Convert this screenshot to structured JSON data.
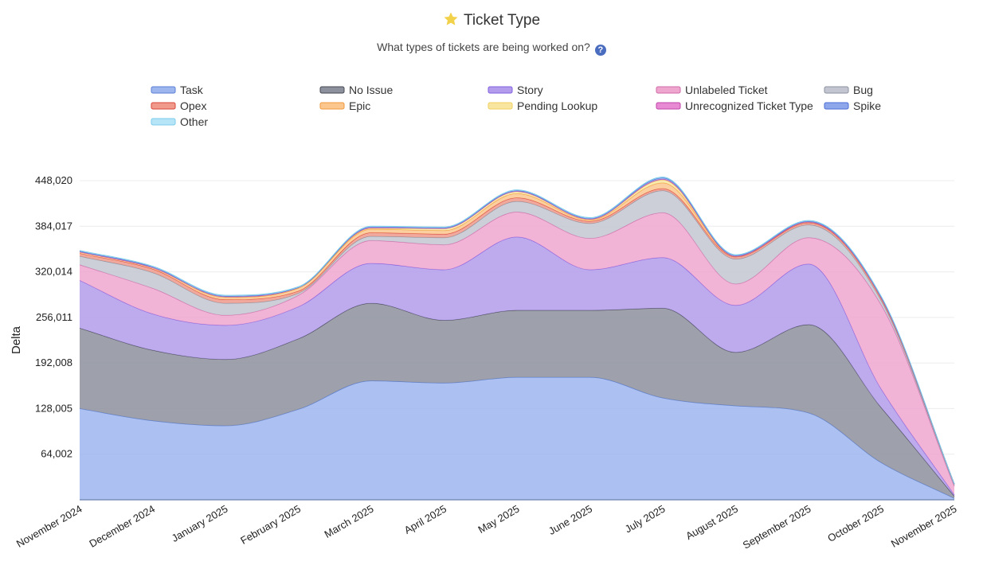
{
  "header": {
    "title": "Ticket Type",
    "subtitle": "What types of tickets are being worked on?",
    "help_symbol": "?",
    "title_icon": "star-icon",
    "star_color": "#f2d14b"
  },
  "chart_data": {
    "type": "area",
    "stacked": true,
    "smooth": true,
    "title": "Ticket Type",
    "xlabel": "",
    "ylabel": "Delta",
    "ylim": [
      0,
      448020
    ],
    "yticks": [
      "64,002",
      "128,005",
      "192,008",
      "256,011",
      "320,014",
      "384,017",
      "448,020"
    ],
    "ytick_values": [
      64002,
      128005,
      192008,
      256011,
      320014,
      384017,
      448020
    ],
    "grid": true,
    "legend_position": "top",
    "x": [
      "November 2024",
      "December 2024",
      "January 2025",
      "February 2025",
      "March 2025",
      "April 2025",
      "May 2025",
      "June 2025",
      "July 2025",
      "August 2025",
      "September 2025",
      "October 2025",
      "November 2025"
    ],
    "series": [
      {
        "name": "Task",
        "color": "#9db6ee",
        "line": "#5b7fd6",
        "values": [
          128000,
          111000,
          104000,
          127000,
          167000,
          164000,
          172000,
          172000,
          143000,
          132000,
          122000,
          52000,
          2000
        ]
      },
      {
        "name": "No Issue",
        "color": "#8d919e",
        "line": "#444852",
        "values": [
          113000,
          99000,
          93000,
          99000,
          109000,
          88000,
          94000,
          94000,
          126000,
          75000,
          124000,
          77000,
          3000
        ]
      },
      {
        "name": "Story",
        "color": "#b39ceb",
        "line": "#7f5fe0",
        "values": [
          67000,
          51000,
          48000,
          45000,
          56000,
          71000,
          103000,
          57000,
          71000,
          66000,
          85000,
          26000,
          2000
        ]
      },
      {
        "name": "Unlabeled Ticket",
        "color": "#eea6cf",
        "line": "#d16aa8",
        "values": [
          22000,
          36000,
          14000,
          16000,
          32000,
          35000,
          35000,
          44000,
          63000,
          30000,
          37000,
          118000,
          12000
        ]
      },
      {
        "name": "Bug",
        "color": "#c3c6d1",
        "line": "#8e92a0",
        "values": [
          12000,
          22000,
          17000,
          3000,
          6000,
          10000,
          15000,
          21000,
          31000,
          35000,
          18000,
          6000,
          2000
        ]
      },
      {
        "name": "Opex",
        "color": "#f09a8c",
        "line": "#d8473a",
        "values": [
          4000,
          5000,
          5000,
          3000,
          5000,
          5000,
          5000,
          3000,
          3000,
          3000,
          3000,
          3000,
          1000
        ]
      },
      {
        "name": "Epic",
        "color": "#fbc78f",
        "line": "#f09a3e",
        "values": [
          2000,
          2000,
          3000,
          4000,
          5000,
          5000,
          6000,
          2000,
          8000,
          1000,
          1000,
          1000,
          0
        ]
      },
      {
        "name": "Pending Lookup",
        "color": "#f8e6a0",
        "line": "#f0d060",
        "values": [
          0,
          0,
          1000,
          1000,
          1000,
          3000,
          3000,
          1000,
          4000,
          0,
          0,
          0,
          0
        ]
      },
      {
        "name": "Unrecognized Ticket Type",
        "color": "#e88ad3",
        "line": "#c044a8",
        "values": [
          0,
          0,
          0,
          0,
          1000,
          0,
          0,
          0,
          1000,
          0,
          0,
          0,
          0
        ]
      },
      {
        "name": "Spike",
        "color": "#8da7ea",
        "line": "#4a6dd6",
        "values": [
          1000,
          1000,
          1000,
          0,
          1000,
          1000,
          1000,
          1000,
          2000,
          1000,
          1000,
          1000,
          0
        ]
      },
      {
        "name": "Other",
        "color": "#b7e5f8",
        "line": "#7ccbea",
        "values": [
          1000,
          1000,
          1000,
          1000,
          1000,
          1000,
          1000,
          1000,
          1000,
          1000,
          1000,
          1000,
          0
        ]
      }
    ]
  }
}
